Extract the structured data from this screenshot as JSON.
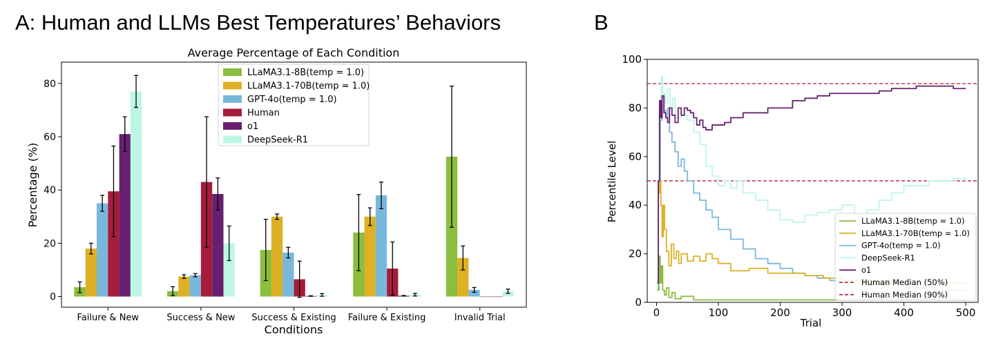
{
  "panels": {
    "a_title": "A: Human and LLMs Best Temperatures’ Behaviors",
    "b_title": "B"
  },
  "colors": {
    "llama8b": "#8BBD3E",
    "llama70b": "#DDB025",
    "gpt4o": "#79B8DB",
    "human": "#A61D3C",
    "o1": "#67206F",
    "deepseek": "#BDF6E4",
    "median": "#B8314B"
  },
  "chart_data": [
    {
      "type": "bar",
      "title": "Average Percentage of Each Condition",
      "xlabel": "Conditions",
      "ylabel": "Percentage (%)",
      "ylim": [
        -4,
        88
      ],
      "yticks": [
        0,
        20,
        40,
        60,
        80
      ],
      "legend_position": "top-center",
      "categories": [
        "Failure & New",
        "Success & New",
        "Success & Existing",
        "Failure & Existing",
        "Invalid Trial"
      ],
      "series": [
        {
          "name": "LLaMA3.1-8B(temp = 1.0)",
          "color_key": "llama8b",
          "values": [
            3.5,
            2.0,
            17.5,
            24.0,
            52.5
          ],
          "errors": [
            2.0,
            1.7,
            11.5,
            14.3,
            26.5
          ]
        },
        {
          "name": "LLaMA3.1-70B(temp = 1.0)",
          "color_key": "llama70b",
          "values": [
            18.0,
            7.5,
            30.0,
            30.0,
            14.5
          ],
          "errors": [
            2.0,
            0.7,
            1.0,
            3.3,
            4.5
          ]
        },
        {
          "name": "GPT-4o(temp = 1.0)",
          "color_key": "gpt4o",
          "values": [
            35.0,
            8.0,
            16.5,
            38.0,
            2.5
          ],
          "errors": [
            3.0,
            0.6,
            2.0,
            5.0,
            0.9
          ]
        },
        {
          "name": "Human",
          "color_key": "human",
          "values": [
            39.5,
            43.0,
            6.5,
            10.5,
            0.0
          ],
          "errors": [
            17.0,
            24.5,
            6.8,
            10.0,
            0.0
          ]
        },
        {
          "name": "o1",
          "color_key": "o1",
          "values": [
            61.0,
            38.5,
            0.2,
            0.3,
            0.0
          ],
          "errors": [
            6.5,
            6.0,
            0.1,
            0.1,
            0.0
          ]
        },
        {
          "name": "DeepSeek-R1",
          "color_key": "deepseek",
          "values": [
            77.0,
            20.0,
            0.6,
            0.7,
            2.0
          ],
          "errors": [
            6.0,
            6.5,
            0.5,
            0.5,
            0.8
          ]
        }
      ]
    },
    {
      "type": "line",
      "xlabel": "Trial",
      "ylabel": "Percentile Level",
      "xlim": [
        -15,
        520
      ],
      "ylim": [
        0,
        100
      ],
      "xticks": [
        0,
        100,
        200,
        300,
        400,
        500
      ],
      "yticks": [
        0,
        20,
        40,
        60,
        80,
        100
      ],
      "legend_position": "lower-right",
      "series": [
        {
          "name": "LLaMA3.1-8B(temp = 1.0)",
          "color_key": "llama8b",
          "x": [
            1,
            4,
            6,
            8,
            10,
            13,
            16,
            20,
            25,
            30,
            40,
            60,
            100,
            200,
            300,
            400,
            500
          ],
          "y": [
            5,
            19,
            8,
            15,
            5,
            3,
            6,
            2,
            4,
            1.5,
            2.5,
            1,
            1,
            1,
            1,
            1,
            1
          ]
        },
        {
          "name": "LLaMA3.1-70B(temp = 1.0)",
          "color_key": "llama70b",
          "x": [
            1,
            3,
            5,
            7,
            9,
            11,
            13,
            16,
            20,
            24,
            28,
            32,
            36,
            40,
            50,
            60,
            70,
            80,
            90,
            100,
            120,
            150,
            180,
            200,
            240,
            270,
            300,
            350,
            400,
            500
          ],
          "y": [
            34,
            45,
            50,
            40,
            27,
            40,
            30,
            21,
            15,
            24,
            18,
            21,
            16,
            20,
            17,
            19,
            17,
            20,
            18,
            16,
            13,
            14,
            12,
            12,
            11,
            10,
            9,
            8,
            8,
            8
          ]
        },
        {
          "name": "GPT-4o(temp = 1.0)",
          "color_key": "gpt4o",
          "x": [
            1,
            3,
            6,
            9,
            12,
            15,
            18,
            21,
            25,
            30,
            35,
            40,
            45,
            50,
            60,
            70,
            80,
            90,
            100,
            120,
            140,
            160,
            180,
            200,
            220,
            240,
            260,
            280,
            300,
            350,
            400,
            450,
            500
          ],
          "y": [
            5,
            50,
            75,
            85,
            79,
            76,
            80,
            70,
            66,
            62,
            56,
            59,
            54,
            50,
            45,
            42,
            38,
            35,
            30,
            26,
            22,
            18,
            16,
            14,
            12,
            11,
            10,
            9,
            9,
            8,
            6,
            5,
            5
          ]
        },
        {
          "name": "DeepSeek-R1",
          "color_key": "deepseek",
          "x": [
            1,
            4,
            8,
            10,
            14,
            18,
            22,
            26,
            30,
            40,
            50,
            60,
            70,
            80,
            90,
            100,
            110,
            120,
            130,
            140,
            160,
            180,
            200,
            220,
            240,
            260,
            280,
            300,
            320,
            340,
            360,
            380,
            400,
            420,
            440,
            460,
            480,
            500
          ],
          "y": [
            50,
            80,
            93,
            86,
            82,
            88,
            80,
            84,
            76,
            77,
            75,
            70,
            65,
            56,
            52,
            48,
            50,
            47,
            50,
            45,
            42,
            38,
            34,
            33,
            36,
            37,
            38,
            40,
            36,
            38,
            42,
            45,
            48,
            48,
            50,
            50,
            51,
            50
          ]
        },
        {
          "name": "o1",
          "color_key": "o1",
          "x": [
            1,
            3,
            5,
            7,
            9,
            12,
            15,
            18,
            21,
            25,
            30,
            35,
            40,
            45,
            50,
            55,
            60,
            65,
            70,
            75,
            80,
            90,
            100,
            110,
            120,
            140,
            160,
            180,
            200,
            220,
            240,
            260,
            280,
            300,
            320,
            340,
            360,
            380,
            400,
            420,
            440,
            460,
            480,
            500
          ],
          "y": [
            8,
            50,
            83,
            76,
            85,
            78,
            76,
            74,
            80,
            77,
            74,
            80,
            77,
            80,
            79,
            78,
            76,
            73,
            75,
            72,
            71,
            73,
            73,
            74,
            76,
            78,
            78,
            80,
            80,
            83,
            84,
            85,
            86,
            86,
            86,
            86,
            87,
            88,
            88,
            89,
            89,
            89,
            88,
            88
          ]
        },
        {
          "name": "Human Median (50%)",
          "color_key": "median",
          "dashed": true,
          "x": [
            -15,
            520
          ],
          "y": [
            50,
            50
          ]
        },
        {
          "name": "Human Median (90%)",
          "color_key": "median",
          "dashed": true,
          "x": [
            -15,
            520
          ],
          "y": [
            90,
            90
          ]
        }
      ]
    }
  ]
}
